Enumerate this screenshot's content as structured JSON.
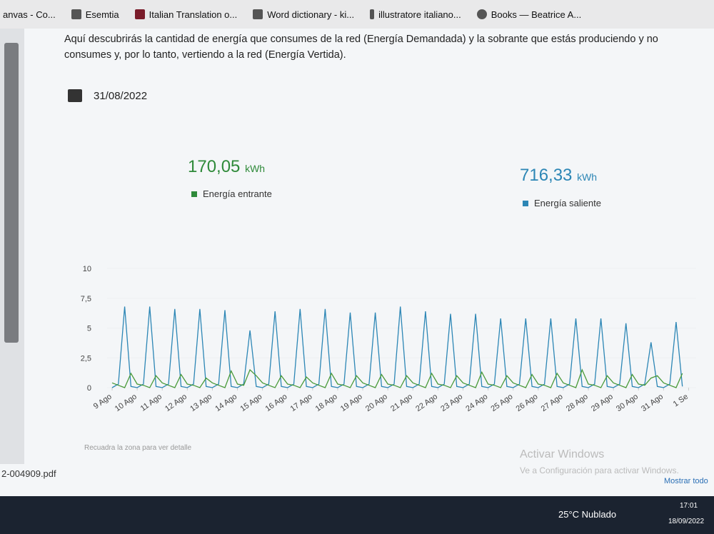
{
  "bookmarks": [
    "anvas - Co...",
    "Esemtia",
    "Italian Translation o...",
    "Word dictionary - ki...",
    "illustratore italiano...",
    "Books — Beatrice A..."
  ],
  "intro": "Aquí descubrirás la cantidad de energía que consumes de la red (Energía Demandada) y la sobrante que estás produciendo y no consumes y, por lo tanto, vertiendo a la red (Energía Vertida).",
  "date": "31/08/2022",
  "stats": [
    {
      "value": "170,05",
      "unit": "kWh"
    },
    {
      "value": "716,33",
      "unit": "kWh"
    }
  ],
  "chart_data": {
    "type": "line",
    "hint": "Recuadra la zona para ver detalle",
    "xlim": [
      -0.2,
      23.3
    ],
    "ylim": [
      0,
      10
    ],
    "yticks": [
      0,
      {
        "value": 2.5,
        "label": "2,5"
      },
      5,
      {
        "value": 7.5,
        "label": "7,5"
      },
      10
    ],
    "xticks": [
      {
        "value": 0,
        "label": "9 Ago"
      },
      {
        "value": 1,
        "label": "10 Ago"
      },
      {
        "value": 2,
        "label": "11 Ago"
      },
      {
        "value": 3,
        "label": "12 Ago"
      },
      {
        "value": 4,
        "label": "13 Ago"
      },
      {
        "value": 5,
        "label": "14 Ago"
      },
      {
        "value": 6,
        "label": "15 Ago"
      },
      {
        "value": 7,
        "label": "16 Ago"
      },
      {
        "value": 8,
        "label": "17 Ago"
      },
      {
        "value": 9,
        "label": "18 Ago"
      },
      {
        "value": 10,
        "label": "19 Ago"
      },
      {
        "value": 11,
        "label": "20 Ago"
      },
      {
        "value": 12,
        "label": "21 Ago"
      },
      {
        "value": 13,
        "label": "22 Ago"
      },
      {
        "value": 14,
        "label": "23 Ago"
      },
      {
        "value": 15,
        "label": "24 Ago"
      },
      {
        "value": 16,
        "label": "25 Ago"
      },
      {
        "value": 17,
        "label": "26 Ago"
      },
      {
        "value": 18,
        "label": "27 Ago"
      },
      {
        "value": 19,
        "label": "28 Ago"
      },
      {
        "value": 20,
        "label": "29 Ago"
      },
      {
        "value": 21,
        "label": "30 Ago"
      },
      {
        "value": 22,
        "label": "31 Ago"
      },
      {
        "value": 23,
        "label": "1 Se"
      }
    ],
    "x": [
      0,
      0.25,
      0.5,
      0.75,
      1,
      1.25,
      1.5,
      1.75,
      2,
      2.25,
      2.5,
      2.75,
      3,
      3.25,
      3.5,
      3.75,
      4,
      4.25,
      4.5,
      4.75,
      5,
      5.25,
      5.5,
      5.75,
      6,
      6.25,
      6.5,
      6.75,
      7,
      7.25,
      7.5,
      7.75,
      8,
      8.25,
      8.5,
      8.75,
      9,
      9.25,
      9.5,
      9.75,
      10,
      10.25,
      10.5,
      10.75,
      11,
      11.25,
      11.5,
      11.75,
      12,
      12.25,
      12.5,
      12.75,
      13,
      13.25,
      13.5,
      13.75,
      14,
      14.25,
      14.5,
      14.75,
      15,
      15.25,
      15.5,
      15.75,
      16,
      16.25,
      16.5,
      16.75,
      17,
      17.25,
      17.5,
      17.75,
      18,
      18.25,
      18.5,
      18.75,
      19,
      19.25,
      19.5,
      19.75,
      20,
      20.25,
      20.5,
      20.75,
      21,
      21.25,
      21.5,
      21.75,
      22,
      22.25,
      22.5,
      22.75
    ],
    "series": [
      {
        "name": "Energía saliente",
        "color": "#2c86b5",
        "values": [
          0,
          0.3,
          6.8,
          0.1,
          0,
          0.3,
          6.8,
          0.1,
          0,
          0.3,
          6.6,
          0.1,
          0,
          0.3,
          6.6,
          0.1,
          0,
          0.3,
          6.5,
          0.1,
          0,
          0.3,
          4.8,
          0.1,
          0,
          0.3,
          6.4,
          0.1,
          0,
          0.3,
          6.6,
          0.1,
          0,
          0.3,
          6.6,
          0.1,
          0,
          0.3,
          6.3,
          0.1,
          0,
          0.3,
          6.3,
          0.1,
          0,
          0.3,
          6.8,
          0.1,
          0,
          0.3,
          6.4,
          0.1,
          0,
          0.3,
          6.2,
          0.1,
          0,
          0.3,
          6.2,
          0.1,
          0,
          0.3,
          5.8,
          0.1,
          0,
          0.3,
          5.8,
          0.1,
          0,
          0.3,
          5.8,
          0.1,
          0,
          0.3,
          5.8,
          0.1,
          0,
          0.3,
          5.8,
          0.1,
          0,
          0.3,
          5.4,
          0.1,
          0,
          0.3,
          3.8,
          0.1,
          0,
          0.3,
          5.5,
          0.1
        ]
      },
      {
        "name": "Energía entrante",
        "color": "#4a9a3a",
        "values": [
          0.4,
          0.2,
          0,
          1.2,
          0.3,
          0.2,
          0,
          1,
          0.4,
          0.2,
          0,
          1.1,
          0.3,
          0.2,
          0,
          0.8,
          0.4,
          0.2,
          0,
          1.4,
          0.3,
          0.2,
          1.5,
          1,
          0.4,
          0.2,
          0,
          1,
          0.3,
          0.2,
          0,
          0.9,
          0.4,
          0.2,
          0,
          1.2,
          0.3,
          0.2,
          0,
          1,
          0.4,
          0.2,
          0,
          1.1,
          0.3,
          0.2,
          0,
          1,
          0.4,
          0.2,
          0,
          1.2,
          0.3,
          0.2,
          0,
          1,
          0.4,
          0.2,
          0,
          1.3,
          0.3,
          0.2,
          0,
          1,
          0.4,
          0.2,
          0,
          1.1,
          0.3,
          0.2,
          0,
          1.2,
          0.4,
          0.2,
          0,
          1.5,
          0.3,
          0.2,
          0,
          1,
          0.4,
          0.2,
          0,
          1.1,
          0.3,
          0.2,
          0.8,
          1,
          0.4,
          0.2,
          0,
          1.2
        ]
      }
    ]
  },
  "download": "2-004909.pdf",
  "watermark": [
    "Activar Windows",
    "Ve a Configuración para activar Windows."
  ],
  "show_all": "Mostrar todo",
  "taskbar": {
    "weather": "25°C  Nublado",
    "time": "17:01",
    "date": "18/09/2022"
  }
}
